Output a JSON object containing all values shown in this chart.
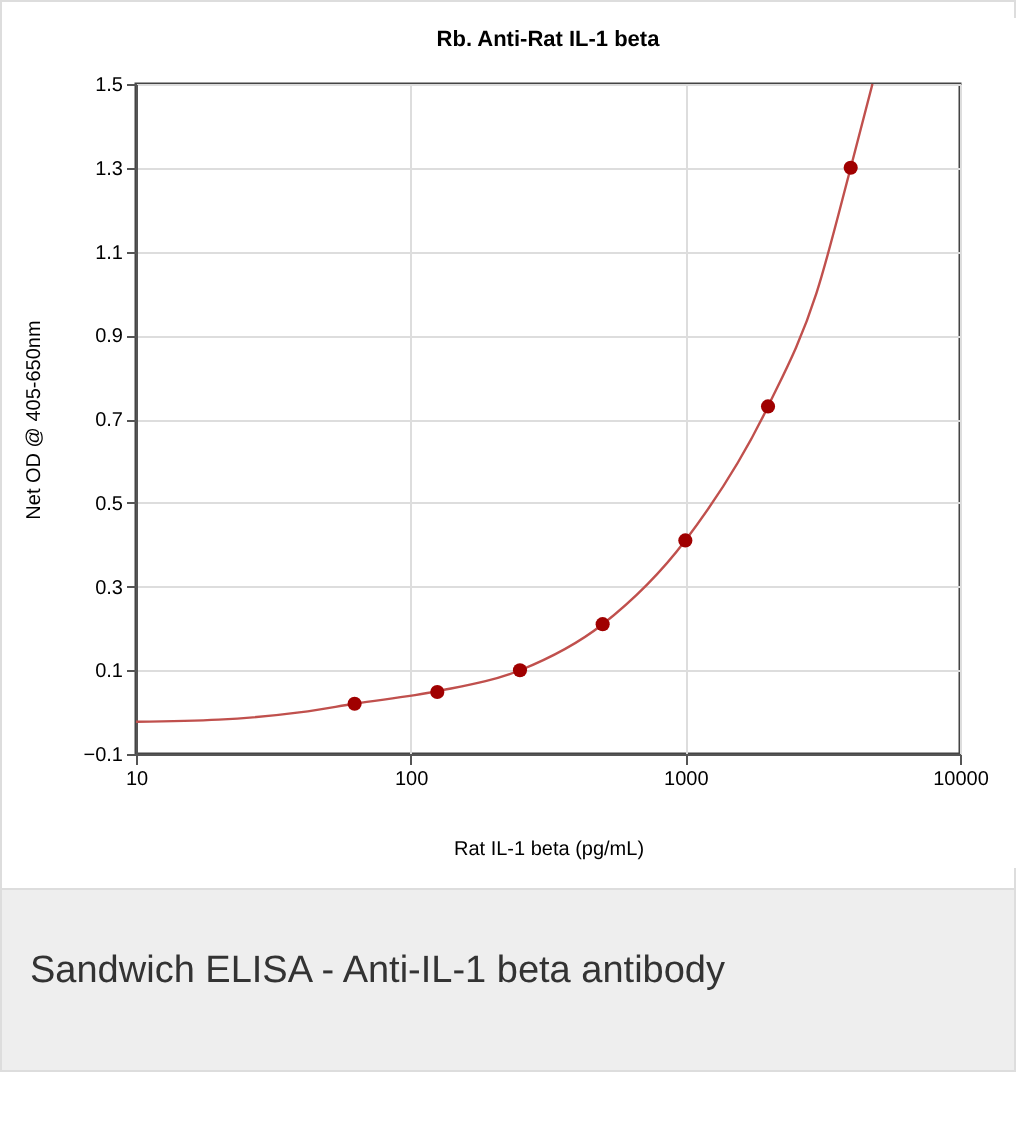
{
  "chart_data": {
    "type": "line",
    "title": "Rb. Anti-Rat IL-1 beta",
    "xlabel": "Rat IL-1 beta (pg/mL)",
    "ylabel": "Net OD @ 405-650nm",
    "log": "x",
    "xlim": [
      10,
      10000
    ],
    "xticks": [
      10,
      100,
      1000,
      10000
    ],
    "ylim": [
      -0.1,
      1.5
    ],
    "yticks": [
      -0.1,
      0.1,
      0.3,
      0.5,
      0.7,
      0.9,
      1.1,
      1.3,
      1.5
    ],
    "grid": true,
    "x": [
      62.5,
      125,
      250,
      500,
      1000,
      2000,
      4000
    ],
    "series": [
      {
        "color": "#c0504d",
        "x": [
          10,
          20,
          40,
          62.5,
          125,
          250,
          500,
          1000,
          2000,
          3000,
          4000,
          4800
        ],
        "values": [
          -0.023,
          -0.018,
          0.0,
          0.02,
          0.05,
          0.1,
          0.21,
          0.41,
          0.73,
          1.0,
          1.3,
          1.5
        ]
      },
      {
        "type": "scatter",
        "marker": "circle",
        "color": "#a00000",
        "values": [
          0.02,
          0.048,
          0.1,
          0.21,
          0.41,
          0.73,
          1.3
        ]
      }
    ],
    "annotations": [
      "Sandwich ELISA - Anti-IL-1 beta antibody"
    ]
  }
}
